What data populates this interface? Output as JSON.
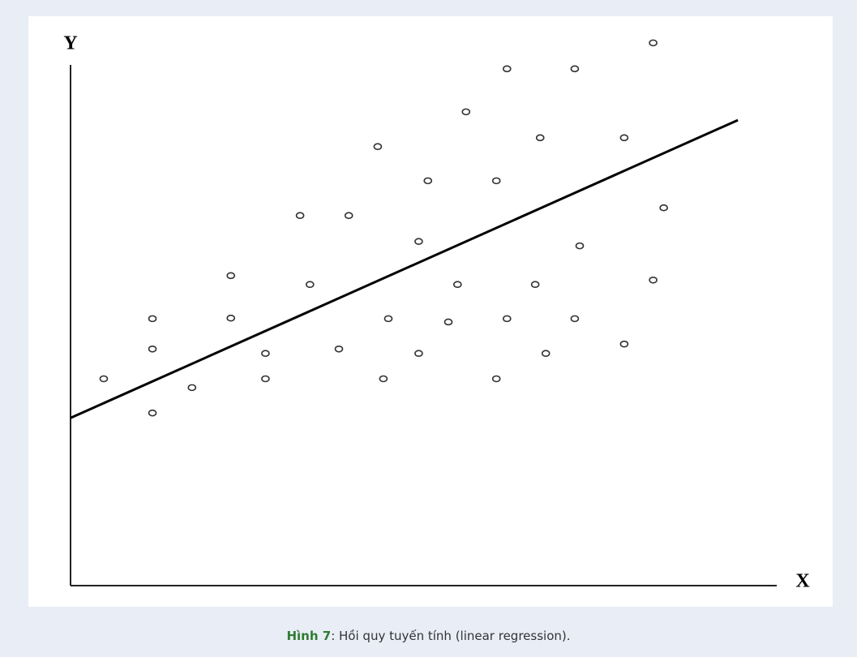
{
  "chart_data": {
    "type": "scatter",
    "x_label": "X",
    "y_label": "Y",
    "xlim": [
      0,
      100
    ],
    "ylim": [
      0,
      100
    ],
    "color": "#333333",
    "x": [
      4.7,
      11.6,
      11.6,
      11.6,
      17.2,
      22.7,
      22.7,
      27.6,
      27.6,
      32.5,
      33.9,
      39.4,
      38.0,
      43.5,
      44.3,
      45.0,
      49.3,
      49.3,
      50.6,
      53.5,
      54.8,
      56.0,
      60.3,
      60.3,
      61.8,
      61.8,
      65.8,
      66.5,
      67.3,
      71.4,
      71.4,
      72.1,
      78.4,
      78.4,
      82.5,
      82.5,
      84.0
    ],
    "values": [
      37.5,
      48.4,
      42.9,
      31.3,
      35.9,
      56.2,
      48.5,
      42.1,
      37.5,
      67.1,
      54.6,
      67.1,
      42.9,
      79.6,
      37.5,
      48.4,
      62.4,
      42.1,
      73.4,
      47.8,
      54.6,
      85.9,
      73.4,
      37.5,
      93.7,
      48.4,
      54.6,
      81.2,
      42.1,
      93.7,
      48.4,
      61.6,
      81.2,
      43.8,
      98.4,
      55.4,
      68.5
    ],
    "regression_line": {
      "color": "#000000",
      "x": [
        0,
        94.5
      ],
      "values": [
        30.4,
        84.4
      ]
    }
  },
  "caption": {
    "label": "Hình 7",
    "text": ": Hồi quy tuyến tính (linear regression)."
  }
}
